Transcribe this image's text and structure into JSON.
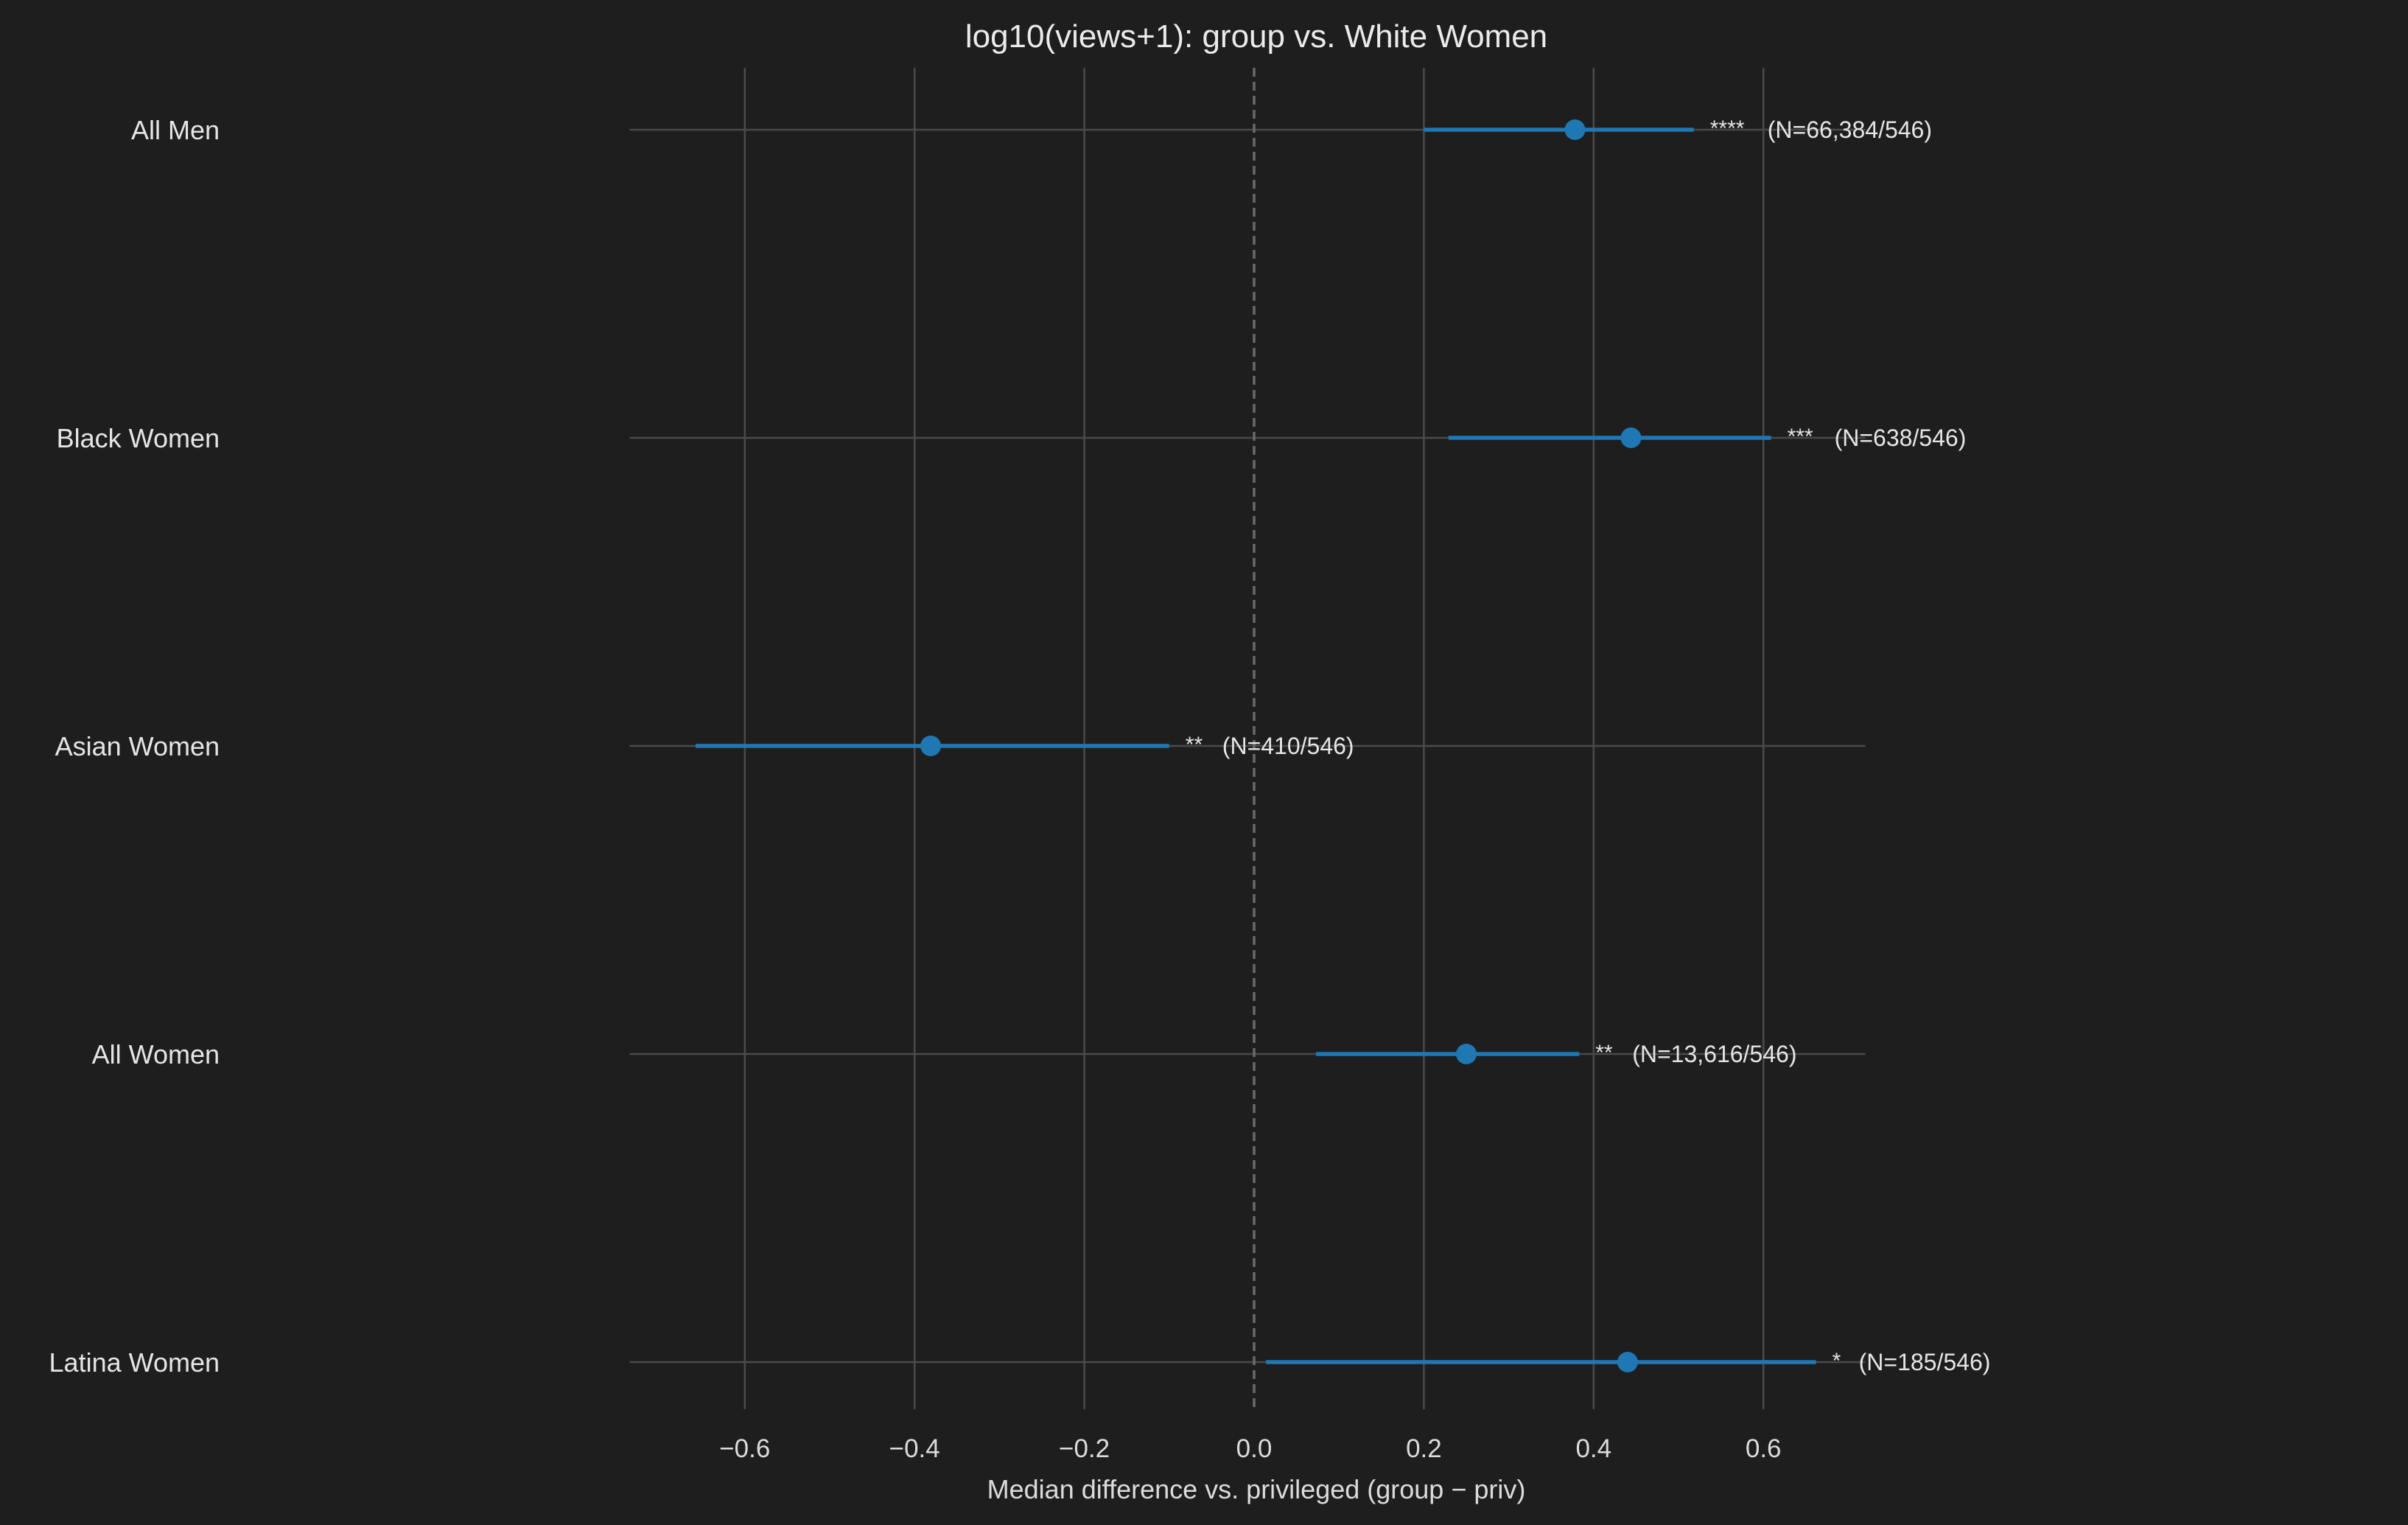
{
  "chart_data": {
    "type": "scatter",
    "title": "log10(views+1): group vs. White Women",
    "xlabel": "Median difference vs. privileged (group − priv)",
    "ylabel": "",
    "xlim": [
      -0.72,
      0.72
    ],
    "xticks": [
      "−0.6",
      "−0.4",
      "−0.2",
      "0.0",
      "0.2",
      "0.4",
      "0.6"
    ],
    "xtick_values": [
      -0.6,
      -0.4,
      -0.2,
      0.0,
      0.2,
      0.4,
      0.6
    ],
    "grid": true,
    "reference_line_x": 0.0,
    "series_color": "#1f77b4",
    "background_color": "#1e1e1e",
    "grid_color": "#4a4a4a",
    "groups": [
      {
        "label": "All Men",
        "median": 0.378,
        "ci_low": 0.2,
        "ci_high": 0.518,
        "stars": "****",
        "n_text": "(N=66,384/546)"
      },
      {
        "label": "Black Women",
        "median": 0.444,
        "ci_low": 0.229,
        "ci_high": 0.609,
        "stars": "***",
        "n_text": "(N=638/546)"
      },
      {
        "label": "Asian Women",
        "median": -0.381,
        "ci_low": -0.658,
        "ci_high": -0.1,
        "stars": "**",
        "n_text": "(N=410/546)"
      },
      {
        "label": "All Women",
        "median": 0.25,
        "ci_low": 0.073,
        "ci_high": 0.383,
        "stars": "**",
        "n_text": "(N=13,616/546)"
      },
      {
        "label": "Latina Women",
        "median": 0.44,
        "ci_low": 0.014,
        "ci_high": 0.662,
        "stars": "*",
        "n_text": "(N=185/546)"
      }
    ]
  }
}
